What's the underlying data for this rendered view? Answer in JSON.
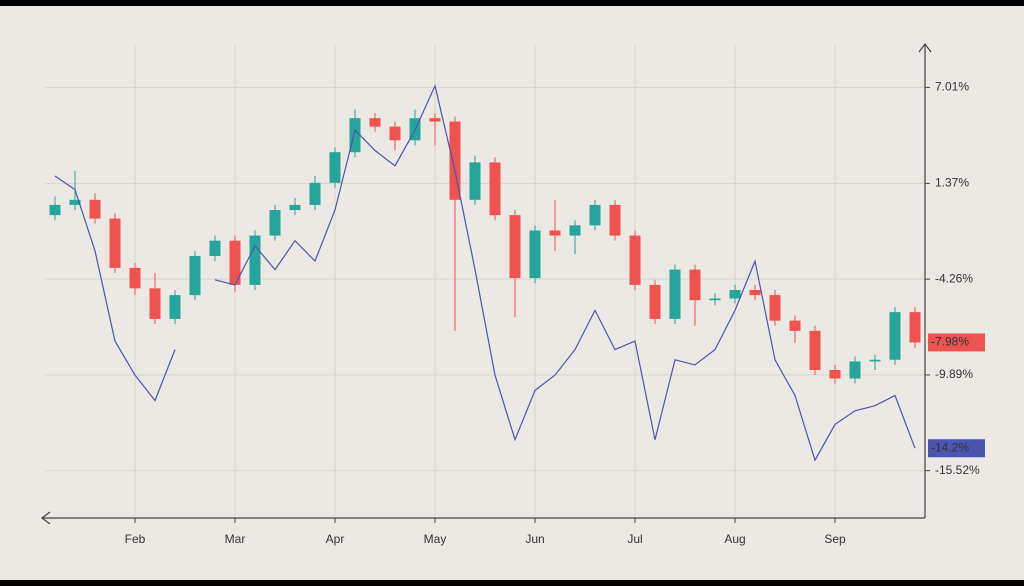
{
  "chart_data": {
    "type": "candlestick",
    "categories": [
      null,
      null,
      null,
      null,
      "Feb",
      null,
      null,
      null,
      null,
      "Mar",
      null,
      null,
      null,
      null,
      "Apr",
      null,
      null,
      null,
      null,
      "May",
      null,
      null,
      null,
      null,
      "Jun",
      null,
      null,
      null,
      null,
      "Jul",
      null,
      null,
      null,
      null,
      "Aug",
      null,
      null,
      null,
      null,
      "Sep",
      null,
      null,
      null,
      null
    ],
    "open": [
      -0.5,
      0.1,
      0.4,
      -0.7,
      -3.6,
      -4.8,
      -6.6,
      -5.2,
      -2.9,
      -2.0,
      -4.6,
      -1.7,
      -0.2,
      0.1,
      1.4,
      3.2,
      5.2,
      4.7,
      3.9,
      5.2,
      5.0,
      0.4,
      2.6,
      -0.5,
      -4.2,
      -1.4,
      -1.7,
      -1.1,
      0.1,
      -1.7,
      -4.6,
      -6.6,
      -3.7,
      -5.5,
      -5.4,
      -4.9,
      -5.2,
      -6.7,
      -7.3,
      -9.6,
      -10.1,
      -9.1,
      -9.0,
      -6.2
    ],
    "high": [
      0.6,
      2.1,
      0.8,
      -0.4,
      -3.3,
      -3.9,
      -4.9,
      -2.6,
      -1.7,
      -1.7,
      -1.4,
      0.1,
      0.5,
      1.8,
      3.5,
      5.7,
      5.5,
      5.0,
      5.7,
      5.5,
      5.3,
      3.0,
      2.9,
      -0.2,
      -1.1,
      0.4,
      -0.8,
      0.4,
      0.4,
      -1.4,
      -4.3,
      -3.4,
      -3.4,
      -5.1,
      -4.6,
      -4.6,
      -4.9,
      -6.4,
      -7.0,
      -9.3,
      -8.8,
      -8.7,
      -5.9,
      -5.9
    ],
    "low": [
      -0.8,
      -0.2,
      -1.0,
      -3.9,
      -5.2,
      -6.9,
      -6.9,
      -5.5,
      -3.2,
      -5.0,
      -4.9,
      -2.0,
      -0.5,
      -0.2,
      1.1,
      2.9,
      4.4,
      3.3,
      3.6,
      3.6,
      -7.3,
      0.1,
      -0.8,
      -6.5,
      -4.5,
      -2.6,
      -2.8,
      -1.4,
      -2.0,
      -4.9,
      -6.9,
      -6.9,
      -7.0,
      -5.8,
      -5.7,
      -5.5,
      -7.0,
      -8.0,
      -9.9,
      -10.4,
      -10.4,
      -9.6,
      -9.3,
      -8.3
    ],
    "close": [
      0.1,
      0.4,
      -0.7,
      -3.6,
      -4.8,
      -6.6,
      -5.2,
      -2.9,
      -2.0,
      -4.6,
      -1.7,
      -0.2,
      0.1,
      1.4,
      3.2,
      5.2,
      4.7,
      3.9,
      5.2,
      5.0,
      0.4,
      2.6,
      -0.5,
      -4.2,
      -1.4,
      -1.7,
      -1.1,
      0.1,
      -1.7,
      -4.6,
      -6.6,
      -3.7,
      -5.5,
      -5.4,
      -4.9,
      -5.2,
      -6.7,
      -7.3,
      -9.6,
      -10.1,
      -9.1,
      -9.0,
      -6.2,
      -7.98
    ],
    "value_labels": [
      null,
      null,
      null,
      null,
      null,
      null,
      null,
      null,
      null,
      null,
      null,
      null,
      null,
      null,
      null,
      null,
      null,
      null,
      null,
      null,
      null,
      null,
      null,
      null,
      null,
      null,
      null,
      null,
      null,
      null,
      null,
      null,
      null,
      null,
      null,
      null,
      null,
      null,
      null,
      null,
      null,
      null,
      null,
      "-7.98%"
    ],
    "up_color": "#26a69a",
    "down_color": "#ef5350",
    "overlay": {
      "type": "line",
      "color": "#4a55b0",
      "values": [
        1.8,
        1.0,
        -2.6,
        -7.9,
        -9.9,
        -11.4,
        -8.4,
        null,
        -4.3,
        -4.6,
        -2.3,
        -3.7,
        -2.0,
        -3.2,
        -0.2,
        4.5,
        3.3,
        2.4,
        4.5,
        7.1,
        2.1,
        -3.7,
        -9.9,
        -13.7,
        -10.8,
        -9.9,
        -8.4,
        -6.1,
        -8.4,
        -7.9,
        -13.7,
        -9.0,
        -9.3,
        -8.4,
        -6.1,
        -3.2,
        -9.0,
        -11.1,
        -14.9,
        -12.8,
        -12.0,
        -11.7,
        -11.1,
        -14.2
      ],
      "value_labels": [
        null,
        null,
        null,
        null,
        null,
        null,
        null,
        null,
        null,
        null,
        null,
        null,
        null,
        null,
        null,
        null,
        null,
        null,
        null,
        null,
        null,
        null,
        null,
        null,
        null,
        null,
        null,
        null,
        null,
        null,
        null,
        null,
        null,
        null,
        null,
        null,
        null,
        null,
        null,
        null,
        null,
        null,
        null,
        "-14.2%"
      ]
    },
    "ylim": [
      -18.3,
      9.5
    ],
    "yticks": [
      {
        "value": 7.01,
        "label": "7.01%"
      },
      {
        "value": 1.37,
        "label": "1.37%"
      },
      {
        "value": -4.26,
        "label": "-4.26%"
      },
      {
        "value": -9.89,
        "label": "-9.89%"
      },
      {
        "value": -15.52,
        "label": "-15.52%"
      }
    ],
    "grid": true
  }
}
